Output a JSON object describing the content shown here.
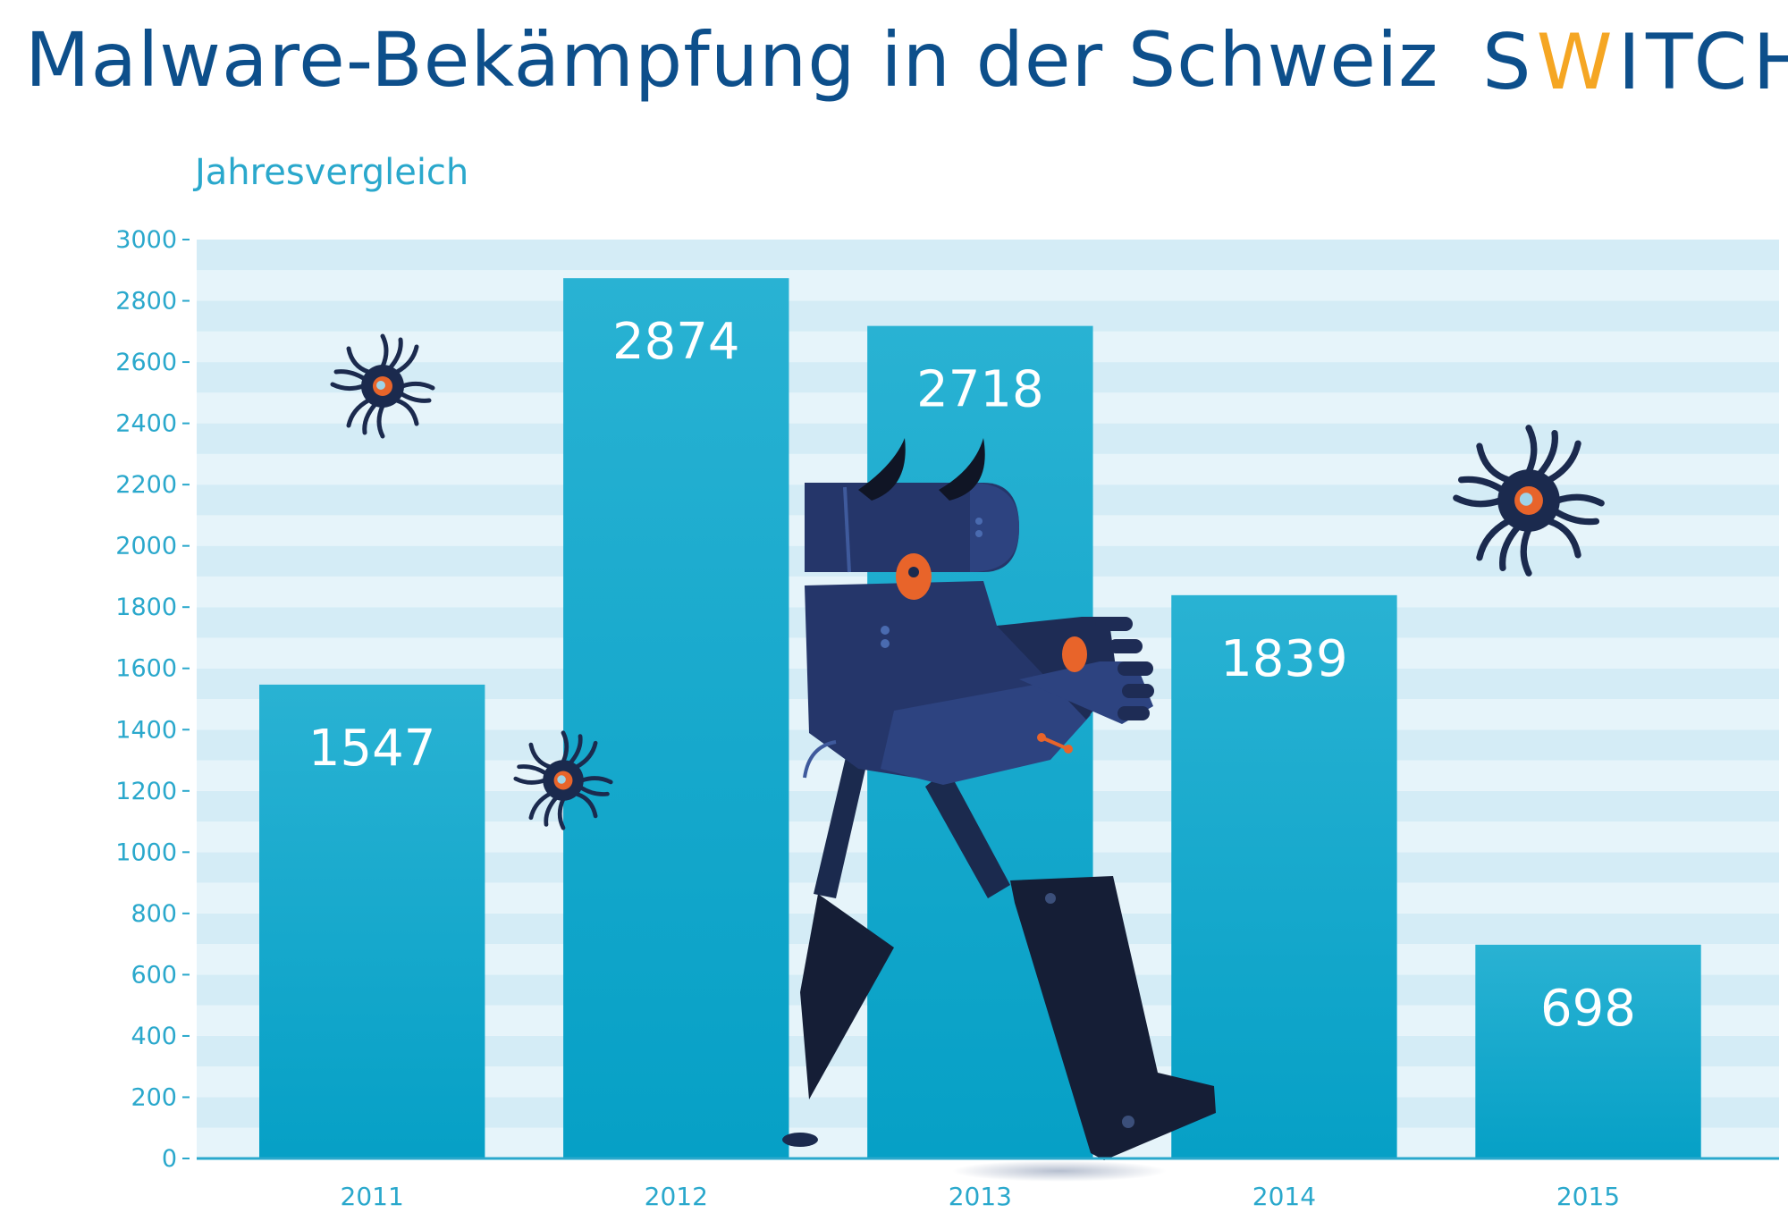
{
  "header": {
    "title": "Malware-Bekämpfung in der Schweiz",
    "logo_text_start": "S",
    "logo_text_accent": "W",
    "logo_text_end": "ITCH"
  },
  "colors": {
    "title": "#0d4f8b",
    "accent": "#f5a623",
    "axis_text": "#2aa8cc",
    "bar_top": "#29b2d3",
    "bar_bottom": "#06a0c6",
    "stripe_light": "#e6f4fa",
    "stripe_dark": "#d4ecf6",
    "robot": "#1b2a4e",
    "robot_eye": "#e8642a"
  },
  "chart_data": {
    "type": "bar",
    "title": "",
    "subtitle": "Jahresvergleich",
    "categories": [
      "2011",
      "2012",
      "2013",
      "2014",
      "2015"
    ],
    "values": [
      1547,
      2874,
      2718,
      1839,
      698
    ],
    "value_labels": [
      "1547",
      "2874",
      "2718",
      "1839",
      "698"
    ],
    "xlabel": "",
    "ylabel": "",
    "ylim": [
      0,
      3000
    ],
    "yticks": [
      0,
      200,
      400,
      600,
      800,
      1000,
      1200,
      1400,
      1600,
      1800,
      2000,
      2200,
      2400,
      2600,
      2800,
      3000
    ],
    "ytick_labels": [
      "0",
      "200",
      "400",
      "600",
      "800",
      "1000",
      "1200",
      "1400",
      "1600",
      "1800",
      "2000",
      "2200",
      "2400",
      "2600",
      "2800",
      "3000"
    ],
    "grid": "horizontal stripes",
    "legend": "none"
  },
  "illustration": {
    "robot": "horned-robot-icon",
    "bugs": [
      "virus-bug-icon",
      "virus-bug-icon",
      "virus-bug-icon"
    ]
  }
}
